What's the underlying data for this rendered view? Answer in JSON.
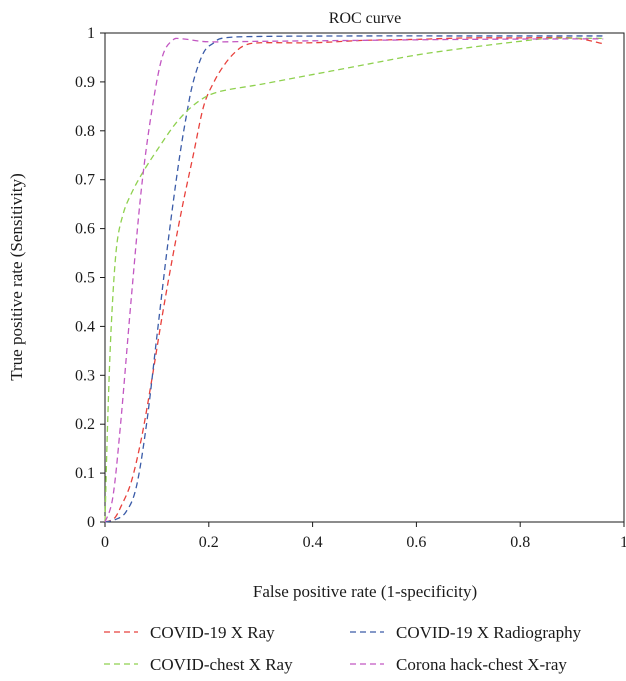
{
  "chart_data": {
    "type": "line",
    "title": "ROC curve",
    "xlabel": "False positive rate (1-specificity)",
    "ylabel": "True positive rate (Sensitivity)",
    "xlim": [
      0,
      1
    ],
    "ylim": [
      0,
      1
    ],
    "x_ticks": [
      "0",
      "0.2",
      "0.4",
      "0.6",
      "0.8",
      "1"
    ],
    "y_ticks": [
      "0",
      "0.1",
      "0.2",
      "0.3",
      "0.4",
      "0.5",
      "0.6",
      "0.7",
      "0.8",
      "0.9",
      "1"
    ],
    "grid": false,
    "line_style": "dashed",
    "legend_position": "bottom",
    "series": [
      {
        "name": "COVID-19 X Ray",
        "color": "#e8413c",
        "points": [
          [
            0,
            0
          ],
          [
            0.01,
            0.003
          ],
          [
            0.02,
            0.01
          ],
          [
            0.03,
            0.03
          ],
          [
            0.05,
            0.08
          ],
          [
            0.07,
            0.17
          ],
          [
            0.09,
            0.29
          ],
          [
            0.11,
            0.42
          ],
          [
            0.13,
            0.54
          ],
          [
            0.15,
            0.65
          ],
          [
            0.17,
            0.75
          ],
          [
            0.19,
            0.85
          ],
          [
            0.21,
            0.9
          ],
          [
            0.23,
            0.935
          ],
          [
            0.25,
            0.96
          ],
          [
            0.27,
            0.975
          ],
          [
            0.3,
            0.98
          ],
          [
            0.4,
            0.98
          ],
          [
            0.5,
            0.985
          ],
          [
            0.6,
            0.987
          ],
          [
            0.7,
            0.99
          ],
          [
            0.8,
            0.99
          ],
          [
            0.9,
            0.99
          ],
          [
            0.96,
            0.978
          ]
        ]
      },
      {
        "name": "COVID-19 X Radiography",
        "color": "#3a5ba8",
        "points": [
          [
            0,
            0
          ],
          [
            0.02,
            0.005
          ],
          [
            0.04,
            0.02
          ],
          [
            0.06,
            0.07
          ],
          [
            0.08,
            0.2
          ],
          [
            0.1,
            0.38
          ],
          [
            0.12,
            0.56
          ],
          [
            0.14,
            0.72
          ],
          [
            0.155,
            0.82
          ],
          [
            0.17,
            0.9
          ],
          [
            0.19,
            0.96
          ],
          [
            0.21,
            0.98
          ],
          [
            0.23,
            0.99
          ],
          [
            0.3,
            0.993
          ],
          [
            0.5,
            0.994
          ],
          [
            0.7,
            0.994
          ],
          [
            0.9,
            0.994
          ],
          [
            0.96,
            0.994
          ]
        ]
      },
      {
        "name": "COVID-chest X Ray",
        "color": "#8fd14f",
        "points": [
          [
            0,
            0
          ],
          [
            0.005,
            0.2
          ],
          [
            0.012,
            0.4
          ],
          [
            0.022,
            0.56
          ],
          [
            0.035,
            0.63
          ],
          [
            0.05,
            0.67
          ],
          [
            0.07,
            0.71
          ],
          [
            0.1,
            0.76
          ],
          [
            0.14,
            0.82
          ],
          [
            0.18,
            0.86
          ],
          [
            0.22,
            0.88
          ],
          [
            0.3,
            0.895
          ],
          [
            0.4,
            0.915
          ],
          [
            0.5,
            0.935
          ],
          [
            0.6,
            0.955
          ],
          [
            0.7,
            0.97
          ],
          [
            0.8,
            0.983
          ],
          [
            0.86,
            0.989
          ],
          [
            0.96,
            0.989
          ]
        ]
      },
      {
        "name": "Corona hack-chest X-ray",
        "color": "#c257c2",
        "points": [
          [
            0,
            0
          ],
          [
            0.015,
            0.05
          ],
          [
            0.03,
            0.2
          ],
          [
            0.05,
            0.45
          ],
          [
            0.07,
            0.68
          ],
          [
            0.09,
            0.84
          ],
          [
            0.11,
            0.95
          ],
          [
            0.13,
            0.985
          ],
          [
            0.15,
            0.988
          ],
          [
            0.2,
            0.982
          ],
          [
            0.3,
            0.983
          ],
          [
            0.5,
            0.985
          ],
          [
            0.7,
            0.987
          ],
          [
            0.9,
            0.988
          ],
          [
            0.96,
            0.988
          ]
        ]
      }
    ]
  }
}
